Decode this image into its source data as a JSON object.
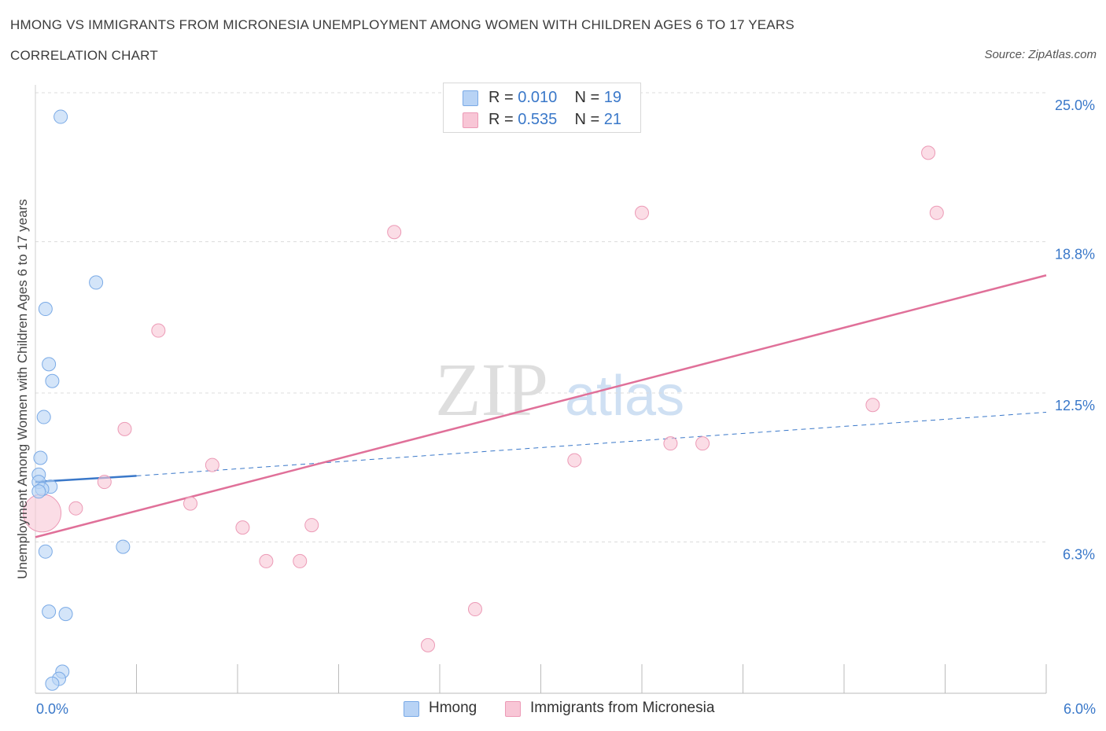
{
  "header": {
    "title": "HMONG VS IMMIGRANTS FROM MICRONESIA UNEMPLOYMENT AMONG WOMEN WITH CHILDREN AGES 6 TO 17 YEARS",
    "subtitle": "CORRELATION CHART",
    "source": "Source: ZipAtlas.com"
  },
  "legend": {
    "series1": {
      "r_label": "R = ",
      "r_value": "0.010",
      "n_label": "N = ",
      "n_value": "19"
    },
    "series2": {
      "r_label": "R = ",
      "r_value": "0.535",
      "n_label": "N = ",
      "n_value": "21"
    }
  },
  "watermark": {
    "zip": "ZIP",
    "atlas": "atlas"
  },
  "colors": {
    "hmong_fill": "#b8d3f5",
    "hmong_stroke": "#7aaae6",
    "hmong_line": "#3a78c9",
    "micronesia_fill": "#f8c6d6",
    "micronesia_stroke": "#ec9ab6",
    "micronesia_line": "#e07099",
    "axis_label": "#3a78c9",
    "grid": "#dcdcdc"
  },
  "chart_data": {
    "type": "scatter",
    "title": "HMONG VS IMMIGRANTS FROM MICRONESIA UNEMPLOYMENT AMONG WOMEN WITH CHILDREN AGES 6 TO 17 YEARS",
    "xlabel": "",
    "ylabel": "Unemployment Among Women with Children Ages 6 to 17 years",
    "xlim": [
      0,
      6.0
    ],
    "ylim": [
      0,
      25.0
    ],
    "x_tick_labels": [
      "0.0%",
      "6.0%"
    ],
    "y_ticks": [
      6.3,
      12.5,
      18.8,
      25.0
    ],
    "y_tick_labels": [
      "6.3%",
      "12.5%",
      "18.8%",
      "25.0%"
    ],
    "series": [
      {
        "name": "Hmong",
        "R": 0.01,
        "N": 19,
        "points": [
          {
            "x": 0.15,
            "y": 24.0
          },
          {
            "x": 0.36,
            "y": 17.1
          },
          {
            "x": 0.06,
            "y": 16.0
          },
          {
            "x": 0.08,
            "y": 13.7
          },
          {
            "x": 0.1,
            "y": 13.0
          },
          {
            "x": 0.05,
            "y": 11.5
          },
          {
            "x": 0.03,
            "y": 9.8
          },
          {
            "x": 0.02,
            "y": 9.1
          },
          {
            "x": 0.02,
            "y": 8.8
          },
          {
            "x": 0.09,
            "y": 8.6
          },
          {
            "x": 0.04,
            "y": 8.5
          },
          {
            "x": 0.02,
            "y": 8.4
          },
          {
            "x": 0.52,
            "y": 6.1
          },
          {
            "x": 0.06,
            "y": 5.9
          },
          {
            "x": 0.08,
            "y": 3.4
          },
          {
            "x": 0.18,
            "y": 3.3
          },
          {
            "x": 0.16,
            "y": 0.9
          },
          {
            "x": 0.14,
            "y": 0.6
          },
          {
            "x": 0.1,
            "y": 0.4
          }
        ],
        "trend": {
          "x0": 0.0,
          "y0": 8.8,
          "x1": 0.6,
          "y1": 9.05,
          "dashed_to_x": 6.0,
          "dashed_to_y": 11.7
        }
      },
      {
        "name": "Immigrants from Micronesia",
        "R": 0.535,
        "N": 21,
        "points": [
          {
            "x": 0.04,
            "y": 7.5,
            "large": true
          },
          {
            "x": 5.3,
            "y": 22.5
          },
          {
            "x": 5.35,
            "y": 20.0
          },
          {
            "x": 3.6,
            "y": 20.0
          },
          {
            "x": 2.13,
            "y": 19.2
          },
          {
            "x": 0.73,
            "y": 15.1
          },
          {
            "x": 0.53,
            "y": 11.0
          },
          {
            "x": 4.97,
            "y": 12.0
          },
          {
            "x": 3.77,
            "y": 10.4
          },
          {
            "x": 3.96,
            "y": 10.4
          },
          {
            "x": 3.2,
            "y": 9.7
          },
          {
            "x": 1.05,
            "y": 9.5
          },
          {
            "x": 0.41,
            "y": 8.8
          },
          {
            "x": 0.92,
            "y": 7.9
          },
          {
            "x": 0.24,
            "y": 7.7
          },
          {
            "x": 1.64,
            "y": 7.0
          },
          {
            "x": 1.23,
            "y": 6.9
          },
          {
            "x": 1.37,
            "y": 5.5
          },
          {
            "x": 1.57,
            "y": 5.5
          },
          {
            "x": 2.61,
            "y": 3.5
          },
          {
            "x": 2.33,
            "y": 2.0
          }
        ],
        "trend": {
          "x0": 0.0,
          "y0": 6.5,
          "x1": 6.0,
          "y1": 17.4
        }
      }
    ]
  },
  "bottom_legend": [
    {
      "label": "Hmong"
    },
    {
      "label": "Immigrants from Micronesia"
    }
  ]
}
